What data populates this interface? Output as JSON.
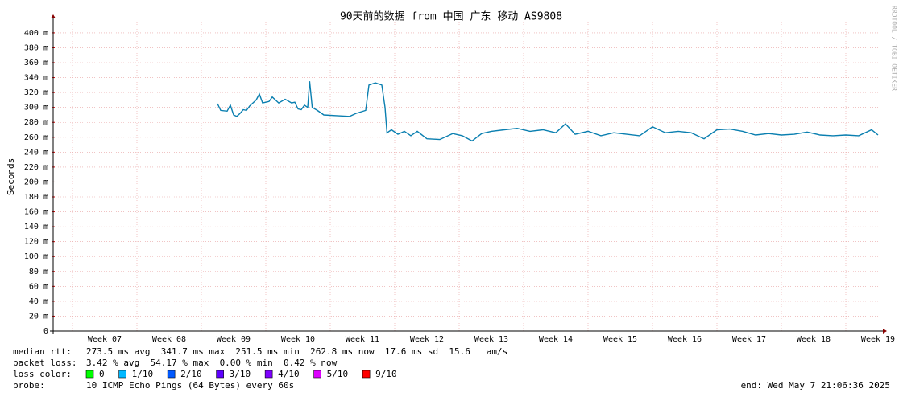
{
  "chart_data": {
    "type": "line",
    "title": "90天前的数据 from 中国 广东 移动 AS9808",
    "y_label": "Seconds",
    "side_text": "RRDTOOL / TOBI OETIKER",
    "xlim": [
      6.2,
      19.05
    ],
    "xticks": [
      {
        "value": 7,
        "label": "Week 07"
      },
      {
        "value": 8,
        "label": "Week 08"
      },
      {
        "value": 9,
        "label": "Week 09"
      },
      {
        "value": 10,
        "label": "Week 10"
      },
      {
        "value": 11,
        "label": "Week 11"
      },
      {
        "value": 12,
        "label": "Week 12"
      },
      {
        "value": 13,
        "label": "Week 13"
      },
      {
        "value": 14,
        "label": "Week 14"
      },
      {
        "value": 15,
        "label": "Week 15"
      },
      {
        "value": 16,
        "label": "Week 16"
      },
      {
        "value": 17,
        "label": "Week 17"
      },
      {
        "value": 18,
        "label": "Week 18"
      },
      {
        "value": 19,
        "label": "Week 19"
      }
    ],
    "ylim": [
      0,
      0.415
    ],
    "yticks": [
      0,
      {
        "value": 0.02,
        "label": "20 m"
      },
      {
        "value": 0.04,
        "label": "40 m"
      },
      {
        "value": 0.06,
        "label": "60 m"
      },
      {
        "value": 0.08,
        "label": "80 m"
      },
      {
        "value": 0.1,
        "label": "100 m"
      },
      {
        "value": 0.12,
        "label": "120 m"
      },
      {
        "value": 0.14,
        "label": "140 m"
      },
      {
        "value": 0.16,
        "label": "160 m"
      },
      {
        "value": 0.18,
        "label": "180 m"
      },
      {
        "value": 0.2,
        "label": "200 m"
      },
      {
        "value": 0.22,
        "label": "220 m"
      },
      {
        "value": 0.24,
        "label": "240 m"
      },
      {
        "value": 0.26,
        "label": "260 m"
      },
      {
        "value": 0.28,
        "label": "280 m"
      },
      {
        "value": 0.3,
        "label": "300 m"
      },
      {
        "value": 0.32,
        "label": "320 m"
      },
      {
        "value": 0.34,
        "label": "340 m"
      },
      {
        "value": 0.36,
        "label": "360 m"
      },
      {
        "value": 0.38,
        "label": "380 m"
      },
      {
        "value": 0.4,
        "label": "400 m"
      }
    ],
    "grid": true,
    "x": [
      8.75,
      8.8,
      8.9,
      8.95,
      9.0,
      9.05,
      9.1,
      9.15,
      9.2,
      9.25,
      9.3,
      9.35,
      9.4,
      9.45,
      9.55,
      9.6,
      9.7,
      9.8,
      9.9,
      9.95,
      10.0,
      10.05,
      10.1,
      10.15,
      10.18,
      10.22,
      10.3,
      10.4,
      10.6,
      10.8,
      10.9,
      11.05,
      11.1,
      11.2,
      11.3,
      11.35,
      11.38,
      11.45,
      11.55,
      11.65,
      11.75,
      11.85,
      12.0,
      12.2,
      12.4,
      12.55,
      12.7,
      12.85,
      13.0,
      13.2,
      13.4,
      13.6,
      13.8,
      14.0,
      14.15,
      14.3,
      14.5,
      14.7,
      14.9,
      15.1,
      15.3,
      15.5,
      15.7,
      15.9,
      16.1,
      16.3,
      16.5,
      16.7,
      16.9,
      17.1,
      17.3,
      17.5,
      17.7,
      17.9,
      18.1,
      18.3,
      18.5,
      18.7,
      18.9,
      19.0
    ],
    "series": [
      {
        "name": "median rtt",
        "color": "#0a7fb0",
        "values": [
          0.305,
          0.296,
          0.295,
          0.303,
          0.29,
          0.288,
          0.292,
          0.297,
          0.296,
          0.302,
          0.306,
          0.31,
          0.318,
          0.306,
          0.308,
          0.314,
          0.306,
          0.311,
          0.306,
          0.307,
          0.298,
          0.297,
          0.303,
          0.3,
          0.335,
          0.3,
          0.296,
          0.29,
          0.289,
          0.288,
          0.292,
          0.296,
          0.33,
          0.333,
          0.33,
          0.3,
          0.266,
          0.27,
          0.264,
          0.268,
          0.262,
          0.268,
          0.258,
          0.257,
          0.265,
          0.262,
          0.255,
          0.265,
          0.268,
          0.27,
          0.272,
          0.268,
          0.27,
          0.266,
          0.278,
          0.264,
          0.268,
          0.262,
          0.266,
          0.264,
          0.262,
          0.274,
          0.266,
          0.268,
          0.266,
          0.258,
          0.27,
          0.271,
          0.268,
          0.263,
          0.265,
          0.263,
          0.264,
          0.267,
          0.263,
          0.262,
          0.263,
          0.262,
          0.27,
          0.263
        ]
      }
    ],
    "stats": [
      {
        "label": "median rtt:",
        "text": "273.5 ms avg  341.7 ms max  251.5 ms min  262.8 ms now  17.6 ms sd  15.6   am/s"
      },
      {
        "label": "packet loss:",
        "text": "3.42 % avg  54.17 % max  0.00 % min  0.42 % now"
      }
    ],
    "loss_label": "loss color:",
    "loss_colors": [
      {
        "name": "0",
        "color": "#00ff00"
      },
      {
        "name": "1/10",
        "color": "#00b8ff"
      },
      {
        "name": "2/10",
        "color": "#0059ff"
      },
      {
        "name": "3/10",
        "color": "#5e00ff"
      },
      {
        "name": "4/10",
        "color": "#7e00ff"
      },
      {
        "name": "5/10",
        "color": "#dd00ff"
      },
      {
        "name": "9/10",
        "color": "#ff0000"
      }
    ],
    "probe_label": "probe:",
    "probe_text": "10 ICMP Echo Pings (64 Bytes) every 60s",
    "end_text": "end: Wed May  7 21:06:36 2025"
  }
}
